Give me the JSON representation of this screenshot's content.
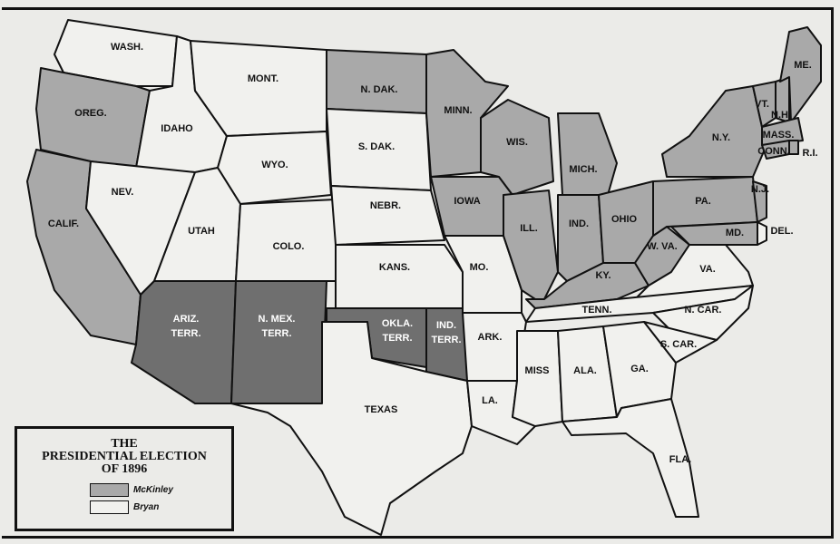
{
  "legend": {
    "title_line1": "THE",
    "title_line2": "PRESIDENTIAL ELECTION",
    "title_line3": "OF 1896",
    "items": [
      {
        "label": "McKinley",
        "color": "#a9a9a9"
      },
      {
        "label": "Bryan",
        "color": "#f1f1ee"
      }
    ]
  },
  "colors": {
    "mckinley": "#a9a9a9",
    "bryan": "#f1f1ee",
    "territory": "#6f6f6f",
    "border": "#111111"
  },
  "states": [
    {
      "id": "wa",
      "label": "WASH.",
      "winner": "bryan"
    },
    {
      "id": "or",
      "label": "OREG.",
      "winner": "mckinley"
    },
    {
      "id": "ca",
      "label": "CALIF.",
      "winner": "mckinley"
    },
    {
      "id": "id",
      "label": "IDAHO",
      "winner": "bryan"
    },
    {
      "id": "nv",
      "label": "NEV.",
      "winner": "bryan"
    },
    {
      "id": "mt",
      "label": "MONT.",
      "winner": "bryan"
    },
    {
      "id": "wy",
      "label": "WYO.",
      "winner": "bryan"
    },
    {
      "id": "ut",
      "label": "UTAH",
      "winner": "bryan"
    },
    {
      "id": "co",
      "label": "COLO.",
      "winner": "bryan"
    },
    {
      "id": "az",
      "label": "ARIZ. TERR.",
      "winner": "territory"
    },
    {
      "id": "nm",
      "label": "N. MEX. TERR.",
      "winner": "territory"
    },
    {
      "id": "nd",
      "label": "N. DAK.",
      "winner": "mckinley"
    },
    {
      "id": "sd",
      "label": "S. DAK.",
      "winner": "bryan"
    },
    {
      "id": "ne",
      "label": "NEBR.",
      "winner": "bryan"
    },
    {
      "id": "ks",
      "label": "KANS.",
      "winner": "bryan"
    },
    {
      "id": "ok",
      "label": "OKLA. TERR.",
      "winner": "territory"
    },
    {
      "id": "it",
      "label": "IND. TERR.",
      "winner": "territory"
    },
    {
      "id": "tx",
      "label": "TEXAS",
      "winner": "bryan"
    },
    {
      "id": "mn",
      "label": "MINN.",
      "winner": "mckinley"
    },
    {
      "id": "ia",
      "label": "IOWA",
      "winner": "mckinley"
    },
    {
      "id": "mo",
      "label": "MO.",
      "winner": "bryan"
    },
    {
      "id": "ar",
      "label": "ARK.",
      "winner": "bryan"
    },
    {
      "id": "la",
      "label": "LA.",
      "winner": "bryan"
    },
    {
      "id": "wi",
      "label": "WIS.",
      "winner": "mckinley"
    },
    {
      "id": "il",
      "label": "ILL.",
      "winner": "mckinley"
    },
    {
      "id": "mi",
      "label": "MICH.",
      "winner": "mckinley"
    },
    {
      "id": "in",
      "label": "IND.",
      "winner": "mckinley"
    },
    {
      "id": "oh",
      "label": "OHIO",
      "winner": "mckinley"
    },
    {
      "id": "ky",
      "label": "KY.",
      "winner": "mckinley"
    },
    {
      "id": "wv",
      "label": "W. VA.",
      "winner": "mckinley"
    },
    {
      "id": "va",
      "label": "VA.",
      "winner": "bryan"
    },
    {
      "id": "tn",
      "label": "TENN.",
      "winner": "bryan"
    },
    {
      "id": "nc",
      "label": "N. CAR.",
      "winner": "bryan"
    },
    {
      "id": "ms",
      "label": "MISS",
      "winner": "bryan"
    },
    {
      "id": "al",
      "label": "ALA.",
      "winner": "bryan"
    },
    {
      "id": "ga",
      "label": "GA.",
      "winner": "bryan"
    },
    {
      "id": "sc",
      "label": "S. CAR.",
      "winner": "bryan"
    },
    {
      "id": "fl",
      "label": "FLA.",
      "winner": "bryan"
    },
    {
      "id": "pa",
      "label": "PA.",
      "winner": "mckinley"
    },
    {
      "id": "ny",
      "label": "N.Y.",
      "winner": "mckinley"
    },
    {
      "id": "vt",
      "label": "VT.",
      "winner": "mckinley"
    },
    {
      "id": "nh",
      "label": "N.H.",
      "winner": "mckinley"
    },
    {
      "id": "me",
      "label": "ME.",
      "winner": "mckinley"
    },
    {
      "id": "ma",
      "label": "MASS.",
      "winner": "mckinley"
    },
    {
      "id": "ct",
      "label": "CONN.",
      "winner": "mckinley"
    },
    {
      "id": "ri",
      "label": "R.I.",
      "winner": "mckinley"
    },
    {
      "id": "nj",
      "label": "N.J.",
      "winner": "mckinley"
    },
    {
      "id": "md",
      "label": "MD.",
      "winner": "mckinley"
    },
    {
      "id": "de",
      "label": "DEL.",
      "winner": "bryan"
    }
  ]
}
